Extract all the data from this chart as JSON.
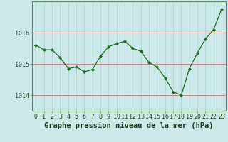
{
  "x": [
    0,
    1,
    2,
    3,
    4,
    5,
    6,
    7,
    8,
    9,
    10,
    11,
    12,
    13,
    14,
    15,
    16,
    17,
    18,
    19,
    20,
    21,
    22,
    23
  ],
  "y": [
    1015.6,
    1015.45,
    1015.45,
    1015.2,
    1014.85,
    1014.9,
    1014.75,
    1014.82,
    1015.25,
    1015.55,
    1015.65,
    1015.72,
    1015.5,
    1015.4,
    1015.05,
    1014.9,
    1014.55,
    1014.1,
    1014.0,
    1014.85,
    1015.35,
    1015.8,
    1016.1,
    1016.75
  ],
  "ylim": [
    1013.5,
    1017.0
  ],
  "yticks": [
    1014,
    1015,
    1016
  ],
  "xticks": [
    0,
    1,
    2,
    3,
    4,
    5,
    6,
    7,
    8,
    9,
    10,
    11,
    12,
    13,
    14,
    15,
    16,
    17,
    18,
    19,
    20,
    21,
    22,
    23
  ],
  "line_color": "#1a6b1a",
  "marker": "D",
  "marker_size": 2.0,
  "line_width": 0.9,
  "bg_color": "#cce8e8",
  "grid_color": "#b0d8d8",
  "xlabel": "Graphe pression niveau de la mer (hPa)",
  "xlabel_color": "#1a3a1a",
  "xlabel_fontsize": 7.5,
  "tick_fontsize": 6.0,
  "tick_color": "#1a4a1a",
  "spine_color": "#5a8a5a",
  "xaxis_line_color": "#2a5a2a"
}
